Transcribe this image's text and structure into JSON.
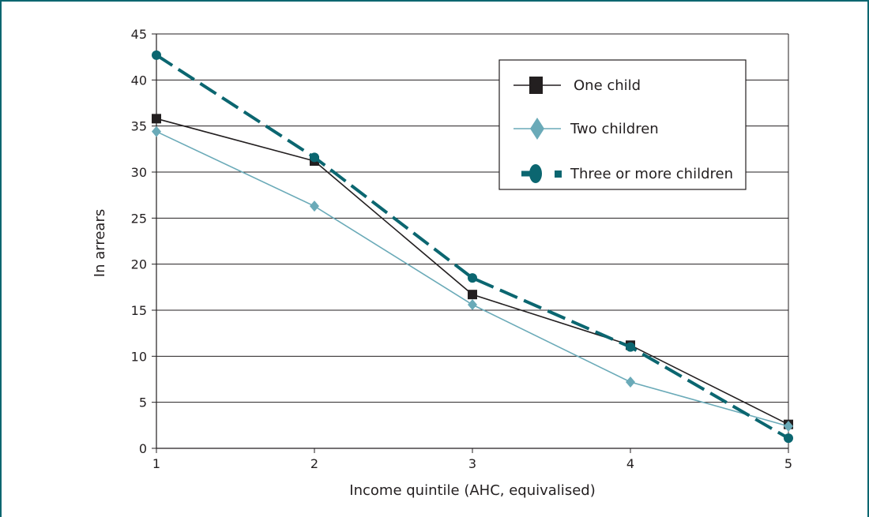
{
  "chart_data": {
    "type": "line",
    "title": "",
    "xlabel": "Income quintile (AHC, equivalised)",
    "ylabel": "In arrears",
    "x": [
      1,
      2,
      3,
      4,
      5
    ],
    "xlim": [
      1,
      5
    ],
    "ylim": [
      0,
      45
    ],
    "yticks": [
      0,
      5,
      10,
      15,
      20,
      25,
      30,
      35,
      40,
      45
    ],
    "xticks": [
      1,
      2,
      3,
      4,
      5
    ],
    "grid": "horizontal",
    "legend_position": "top-right",
    "series": [
      {
        "name": "One child",
        "values": [
          35.8,
          31.2,
          16.7,
          11.2,
          2.6
        ],
        "color": "#231f20",
        "marker": "square",
        "line_style": "solid"
      },
      {
        "name": "Two children",
        "values": [
          34.4,
          26.3,
          15.6,
          7.2,
          2.4
        ],
        "color": "#6aaab8",
        "marker": "diamond",
        "line_style": "solid"
      },
      {
        "name": "Three or more children",
        "values": [
          42.7,
          31.6,
          18.5,
          11.0,
          1.1
        ],
        "color": "#0b6670",
        "marker": "circle",
        "line_style": "dashed"
      }
    ]
  }
}
